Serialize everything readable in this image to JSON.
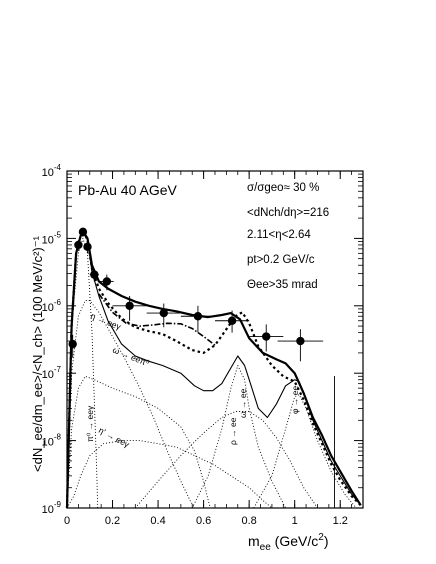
{
  "chart_data": {
    "type": "line",
    "title": "",
    "xlabel_main": "m",
    "xlabel_sub": "ee",
    "xlabel_unit": " (GeV/c",
    "xlabel_sup": "2",
    "xlabel_close": ")",
    "ylabel": "<dN_ee/dm_ee>/<N_ch> (100 MeV/c²)⁻¹",
    "xlim": [
      0,
      1.3
    ],
    "ylim_log10": [
      -9,
      -4
    ],
    "x_ticks": [
      0,
      0.2,
      0.4,
      0.6,
      0.8,
      1.0,
      1.2
    ],
    "x_tick_labels": [
      "0",
      "0.2",
      "0.4",
      "0.6",
      "0.8",
      "1",
      "1.2"
    ],
    "y_ticks_exp": [
      -9,
      -8,
      -7,
      -6,
      -5,
      -4
    ],
    "y_tick_labels": [
      "10",
      "10",
      "10",
      "10",
      "10",
      "10"
    ],
    "y_tick_exps": [
      "-9",
      "-8",
      "-7",
      "-6",
      "-5",
      "-4"
    ],
    "annotations": {
      "system": "Pb-Au 40 AGeV",
      "centrality": "σ/σgeo≈ 30 %",
      "multiplicity": "<dNch/dη>=216",
      "eta_range": "2.11<η<2.64",
      "pt_cut": "pt>0.2 GeV/c",
      "theta_cut": "Θee>35 mrad"
    },
    "channel_labels": {
      "eta_dalitz": "η → eeγ",
      "omega_dalitz": "ω → eeπ⁰",
      "pi0_dalitz": "π⁰ → eeγ",
      "etaprime_dalitz": "η' → eeγ",
      "rho_ee": "ρ → ee",
      "omega_ee": "ω → ee",
      "phi_ee": "φ → ee"
    },
    "data_points": [
      {
        "x": 0.025,
        "y": 2.7e-07,
        "xerr": 0.01,
        "yerr_lo": 1e-07,
        "yerr_hi": 1e-07
      },
      {
        "x": 0.05,
        "y": 8e-06,
        "xerr": 0.01,
        "yerr_lo": 1.5e-06,
        "yerr_hi": 1.5e-06
      },
      {
        "x": 0.07,
        "y": 1.25e-05,
        "xerr": 0.01,
        "yerr_lo": 2e-06,
        "yerr_hi": 2e-06
      },
      {
        "x": 0.09,
        "y": 7.5e-06,
        "xerr": 0.01,
        "yerr_lo": 1.5e-06,
        "yerr_hi": 1.5e-06
      },
      {
        "x": 0.12,
        "y": 2.9e-06,
        "xerr": 0.02,
        "yerr_lo": 6e-07,
        "yerr_hi": 6e-07
      },
      {
        "x": 0.175,
        "y": 2.3e-06,
        "xerr": 0.03,
        "yerr_lo": 6e-07,
        "yerr_hi": 6e-07
      },
      {
        "x": 0.275,
        "y": 1e-06,
        "xerr": 0.075,
        "yerr_lo": 4e-07,
        "yerr_hi": 4e-07
      },
      {
        "x": 0.425,
        "y": 7.8e-07,
        "xerr": 0.075,
        "yerr_lo": 3e-07,
        "yerr_hi": 3e-07
      },
      {
        "x": 0.575,
        "y": 7e-07,
        "xerr": 0.075,
        "yerr_lo": 3e-07,
        "yerr_hi": 3e-07
      },
      {
        "x": 0.725,
        "y": 6e-07,
        "xerr": 0.075,
        "yerr_lo": 2e-07,
        "yerr_hi": 2.5e-07
      },
      {
        "x": 0.875,
        "y": 3.5e-07,
        "xerr": 0.075,
        "yerr_lo": 1.4e-07,
        "yerr_hi": 1.8e-07
      },
      {
        "x": 1.025,
        "y": 3e-07,
        "xerr": 0.1,
        "yerr_lo": 1.5e-07,
        "yerr_hi": 1.5e-07
      },
      {
        "x": 1.175,
        "y": 1e-09,
        "xerr": 0.0,
        "yerr_lo": 0.0,
        "yerr_hi": 9e-08
      }
    ],
    "series": [
      {
        "style": "solid-thick",
        "x": [
          0.0,
          0.02,
          0.04,
          0.06,
          0.075,
          0.09,
          0.11,
          0.14,
          0.18,
          0.24,
          0.3,
          0.36,
          0.42,
          0.48,
          0.55,
          0.62,
          0.68,
          0.72,
          0.76,
          0.8,
          0.86,
          0.92,
          0.96,
          1.0,
          1.04,
          1.08,
          1.12,
          1.16,
          1.2,
          1.25,
          1.29
        ],
        "y": [
          1e-09,
          5e-07,
          6e-06,
          1.1e-05,
          1.2e-05,
          1e-05,
          4e-06,
          2.3e-06,
          1.8e-06,
          1.4e-06,
          1.15e-06,
          1e-06,
          9e-07,
          8.3e-07,
          7.3e-07,
          6.8e-07,
          7.3e-07,
          7.8e-07,
          6.3e-07,
          3.3e-07,
          2e-07,
          1.6e-07,
          1.4e-07,
          1e-07,
          5e-08,
          2.2e-08,
          1.2e-08,
          6e-09,
          3.5e-09,
          1.8e-09,
          1.1e-09
        ]
      },
      {
        "style": "dashed-thick",
        "x": [
          0.0,
          0.02,
          0.04,
          0.06,
          0.075,
          0.09,
          0.11,
          0.14,
          0.18,
          0.24,
          0.3,
          0.36,
          0.42,
          0.48,
          0.55,
          0.6,
          0.65,
          0.7,
          0.74,
          0.77,
          0.8,
          0.84,
          0.9,
          0.95,
          1.0,
          1.04,
          1.08,
          1.12,
          1.16,
          1.2,
          1.25,
          1.29
        ],
        "y": [
          1e-09,
          5e-07,
          6e-06,
          1.1e-05,
          1.2e-05,
          9.5e-06,
          3.5e-06,
          1.8e-06,
          1.1e-06,
          6.5e-07,
          4.8e-07,
          4.2e-07,
          3.8e-07,
          3e-07,
          2.2e-07,
          2e-07,
          2.6e-07,
          4.5e-07,
          7e-07,
          8e-07,
          5.5e-07,
          2.5e-07,
          1.3e-07,
          9e-08,
          7.5e-08,
          4e-08,
          1.8e-08,
          9e-09,
          4.5e-09,
          2.6e-09,
          1.5e-09,
          1.1e-09
        ]
      },
      {
        "style": "dotdash",
        "x": [
          0.14,
          0.2,
          0.26,
          0.32,
          0.38,
          0.44,
          0.5,
          0.55,
          0.6,
          0.65
        ],
        "y": [
          1.5e-06,
          8e-07,
          5.5e-07,
          5e-07,
          5.2e-07,
          5.5e-07,
          5.4e-07,
          4.6e-07,
          3.5e-07,
          2.6e-07
        ]
      },
      {
        "style": "solid-thin",
        "x": [
          0.0,
          0.02,
          0.04,
          0.06,
          0.075,
          0.09,
          0.11,
          0.14,
          0.18,
          0.24,
          0.3,
          0.36,
          0.42,
          0.5,
          0.56,
          0.6,
          0.64,
          0.68,
          0.72,
          0.75,
          0.78,
          0.8,
          0.84,
          0.88,
          0.92,
          0.96,
          1.0,
          1.02,
          1.04,
          1.08,
          1.12,
          1.16,
          1.2,
          1.25,
          1.29
        ],
        "y": [
          1e-09,
          5e-07,
          6e-06,
          1.1e-05,
          1.2e-05,
          9.5e-06,
          3.2e-06,
          1.4e-06,
          6e-07,
          2.7e-07,
          1.8e-07,
          1.5e-07,
          1.3e-07,
          1e-07,
          6.5e-08,
          5.5e-08,
          5.5e-08,
          7e-08,
          1.2e-07,
          1.8e-07,
          1.3e-07,
          8e-08,
          3e-08,
          2.2e-08,
          3.5e-08,
          6.5e-08,
          8e-08,
          7.5e-08,
          5e-08,
          2e-08,
          1e-08,
          5e-09,
          3e-09,
          1.6e-09,
          1.1e-09
        ]
      },
      {
        "style": "dotted",
        "name": "eta_dalitz",
        "x": [
          0.0,
          0.02,
          0.05,
          0.08,
          0.1,
          0.14,
          0.2,
          0.26,
          0.32,
          0.38,
          0.44,
          0.5,
          0.54,
          0.56
        ],
        "y": [
          1e-09,
          1e-07,
          7e-07,
          1.2e-06,
          1.2e-06,
          8e-07,
          3.5e-07,
          1.5e-07,
          6e-08,
          2.2e-08,
          7e-09,
          2.5e-09,
          1.3e-09,
          1e-09
        ]
      },
      {
        "style": "dotted",
        "name": "omega_dalitz",
        "x": [
          0.0,
          0.02,
          0.05,
          0.08,
          0.12,
          0.2,
          0.3,
          0.4,
          0.5,
          0.56,
          0.6,
          0.62,
          0.63
        ],
        "y": [
          1e-09,
          1.5e-08,
          6e-08,
          9e-08,
          8e-08,
          6e-08,
          4.5e-08,
          3e-08,
          1.6e-08,
          7e-09,
          2.5e-09,
          1.3e-09,
          1e-09
        ]
      },
      {
        "style": "dotted",
        "name": "pi0_dalitz",
        "x": [
          0.0,
          0.02,
          0.05,
          0.07,
          0.09,
          0.11,
          0.13,
          0.135
        ],
        "y": [
          1e-09,
          5e-07,
          6e-06,
          1e-05,
          6e-06,
          4e-07,
          4e-09,
          1e-09
        ]
      },
      {
        "style": "dotted",
        "name": "etaprime_dalitz",
        "x": [
          0.0,
          0.03,
          0.06,
          0.1,
          0.16,
          0.24,
          0.32,
          0.4,
          0.48,
          0.56,
          0.64,
          0.72,
          0.8,
          0.86,
          0.9
        ],
        "y": [
          1e-09,
          1.5e-09,
          3e-09,
          6e-09,
          9e-09,
          1e-08,
          1e-08,
          9e-09,
          8e-09,
          6e-09,
          4.5e-09,
          3e-09,
          2e-09,
          1.3e-09,
          1e-09
        ]
      },
      {
        "style": "dotted",
        "name": "rho_ee",
        "x": [
          0.3,
          0.4,
          0.5,
          0.6,
          0.68,
          0.74,
          0.8,
          0.86,
          0.92,
          0.98,
          1.04,
          1.1
        ],
        "y": [
          1e-09,
          2.5e-09,
          6e-09,
          1.3e-08,
          2.2e-08,
          2.7e-08,
          2.7e-08,
          2e-08,
          1.1e-08,
          5e-09,
          2e-09,
          1e-09
        ]
      },
      {
        "style": "dotted",
        "name": "omega_ee",
        "x": [
          0.55,
          0.62,
          0.68,
          0.72,
          0.75,
          0.78,
          0.8,
          0.84,
          0.9,
          0.96
        ],
        "y": [
          1e-09,
          3e-09,
          1.5e-08,
          6e-08,
          1.3e-07,
          8e-08,
          3e-08,
          8e-09,
          2.5e-09,
          1e-09
        ]
      },
      {
        "style": "dotted",
        "name": "phi_ee",
        "x": [
          0.82,
          0.9,
          0.96,
          1.0,
          1.02,
          1.05,
          1.1,
          1.16,
          1.22,
          1.27
        ],
        "y": [
          1e-09,
          3e-09,
          1.5e-08,
          4.5e-08,
          4.8e-08,
          3e-08,
          1e-08,
          3.5e-09,
          1.6e-09,
          1e-09
        ]
      }
    ]
  }
}
